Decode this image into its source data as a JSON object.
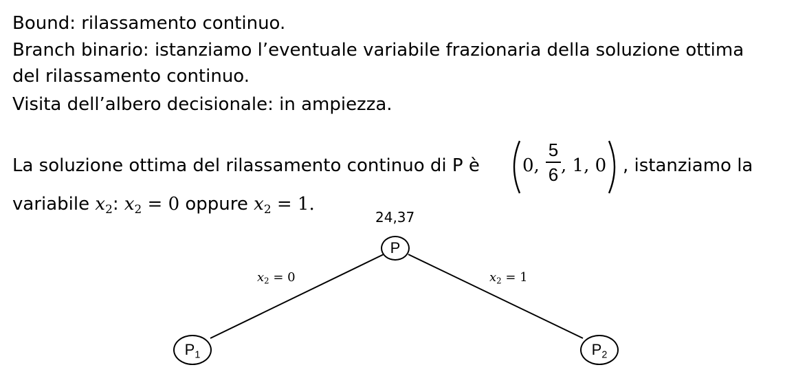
{
  "text": {
    "line1": "Bound: rilassamento continuo.",
    "line2": "Branch binario: istanziamo l’eventuale variabile frazionaria della soluzione ottima",
    "line3": "del rilassamento continuo.",
    "line4": "Visita dell’albero decisionale: in ampiezza.",
    "line5_prefix": "La soluzione ottima del rilassamento continuo di P è",
    "line5_suffix": ", istanziamo la",
    "line6_prefix": "variabile",
    "line6_var": "x",
    "line6_sub": "2",
    "line6_colon": ":",
    "line6_eq1_var": "x",
    "line6_eq1_sub": "2",
    "line6_eq1_rest": " = 0",
    "line6_middle": "oppure",
    "line6_eq2_var": "x",
    "line6_eq2_sub": "2",
    "line6_eq2_rest": " = 1."
  },
  "vector": {
    "open_paren": "(",
    "first": "0,",
    "frac_num": "5",
    "frac_den": "6",
    "rest": ", 1, 0",
    "close_paren": ")"
  },
  "tree": {
    "root_bound": "24,37",
    "root_label": "P",
    "left_label": "P",
    "left_sub": "1",
    "right_label": "P",
    "right_sub": "2",
    "left_edge_var": "x",
    "left_edge_sub": "2",
    "left_edge_rest": " = 0",
    "right_edge_var": "x",
    "right_edge_sub": "2",
    "right_edge_rest": " = 1"
  }
}
